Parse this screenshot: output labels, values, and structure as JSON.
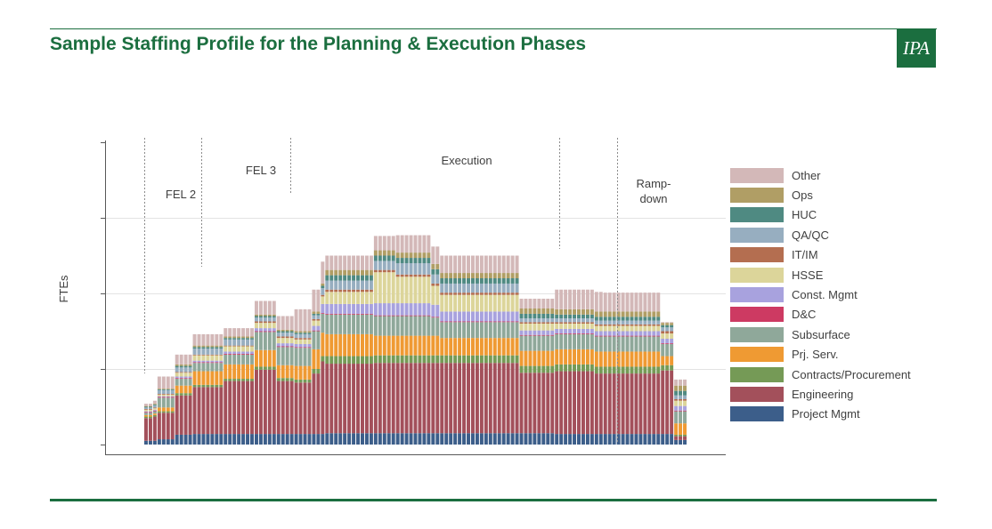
{
  "page": {
    "title": "Sample Staffing Profile for the Planning & Execution Phases",
    "logo_text": "IPA",
    "brand_color": "#1b6e3f"
  },
  "chart_data": {
    "type": "bar",
    "stacked": true,
    "title": "Sample Staffing Profile for the Planning & Execution Phases",
    "xlabel": "",
    "ylabel": "FTEs",
    "ylim": [
      0,
      4
    ],
    "ytick_count": 4,
    "grid": true,
    "legend_position": "right",
    "phases": [
      {
        "label": "FEL 2",
        "start_index": 0,
        "end_index": 12
      },
      {
        "label": "FEL 3",
        "start_index": 13,
        "end_index": 32
      },
      {
        "label": "Execution",
        "start_index": 33,
        "end_index": 93
      },
      {
        "label": "Ramp-\ndown",
        "start_index": 94,
        "end_index": 106
      }
    ],
    "series_order": [
      "Project Mgmt",
      "Engineering",
      "Contracts/Procurement",
      "Prj. Serv.",
      "Subsurface",
      "D&C",
      "Const. Mgmt",
      "HSSE",
      "IT/IM",
      "QA/QC",
      "HUC",
      "Ops",
      "Other"
    ],
    "series_colors": {
      "Other": "#d3b8b8",
      "Ops": "#b09e65",
      "HUC": "#4f8a82",
      "QA/QC": "#97aec0",
      "IT/IM": "#b46e50",
      "HSSE": "#dcd59a",
      "Const. Mgmt": "#a8a2de",
      "D&C": "#cd3a62",
      "Subsurface": "#8fa89a",
      "Prj. Serv.": "#ef9a33",
      "Contracts/Procurement": "#759a56",
      "Engineering": "#a3505b",
      "Project Mgmt": "#3c5e8a"
    },
    "bar_counts": [
      2,
      1,
      4,
      4,
      7,
      7,
      5,
      4,
      4,
      2,
      1,
      11,
      5,
      8,
      2,
      18,
      8,
      9,
      2,
      13,
      3,
      3
    ],
    "segments": [
      {
        "Project Mgmt": 0.05,
        "Engineering": 0.3,
        "Contracts/Procurement": 0.02,
        "Prj. Serv.": 0.02,
        "Subsurface": 0.03,
        "D&C": 0.01,
        "Const. Mgmt": 0.01,
        "HSSE": 0.02,
        "IT/IM": 0.01,
        "QA/QC": 0.02,
        "HUC": 0.01,
        "Ops": 0.01,
        "Other": 0.03
      },
      {
        "Project Mgmt": 0.05,
        "Engineering": 0.32,
        "Contracts/Procurement": 0.02,
        "Prj. Serv.": 0.02,
        "Subsurface": 0.03,
        "D&C": 0.01,
        "Const. Mgmt": 0.01,
        "HSSE": 0.02,
        "IT/IM": 0.01,
        "QA/QC": 0.03,
        "HUC": 0.01,
        "Ops": 0.01,
        "Other": 0.04
      },
      {
        "Project Mgmt": 0.07,
        "Engineering": 0.35,
        "Contracts/Procurement": 0.02,
        "Prj. Serv.": 0.05,
        "Subsurface": 0.13,
        "D&C": 0.01,
        "Const. Mgmt": 0.01,
        "HSSE": 0.02,
        "IT/IM": 0.01,
        "QA/QC": 0.05,
        "HUC": 0.01,
        "Ops": 0.01,
        "Other": 0.16
      },
      {
        "Project Mgmt": 0.13,
        "Engineering": 0.52,
        "Contracts/Procurement": 0.03,
        "Prj. Serv.": 0.1,
        "Subsurface": 0.09,
        "D&C": 0.01,
        "Const. Mgmt": 0.02,
        "HSSE": 0.05,
        "IT/IM": 0.01,
        "QA/QC": 0.06,
        "HUC": 0.02,
        "Ops": 0.02,
        "Other": 0.13
      },
      {
        "Project Mgmt": 0.14,
        "Engineering": 0.62,
        "Contracts/Procurement": 0.03,
        "Prj. Serv.": 0.18,
        "Subsurface": 0.11,
        "D&C": 0.01,
        "Const. Mgmt": 0.02,
        "HSSE": 0.07,
        "IT/IM": 0.01,
        "QA/QC": 0.08,
        "HUC": 0.02,
        "Ops": 0.02,
        "Other": 0.15
      },
      {
        "Project Mgmt": 0.14,
        "Engineering": 0.7,
        "Contracts/Procurement": 0.03,
        "Prj. Serv.": 0.19,
        "Subsurface": 0.13,
        "D&C": 0.01,
        "Const. Mgmt": 0.03,
        "HSSE": 0.07,
        "IT/IM": 0.01,
        "QA/QC": 0.08,
        "HUC": 0.02,
        "Ops": 0.02,
        "Other": 0.11
      },
      {
        "Project Mgmt": 0.14,
        "Engineering": 0.85,
        "Contracts/Procurement": 0.04,
        "Prj. Serv.": 0.22,
        "Subsurface": 0.24,
        "D&C": 0.01,
        "Const. Mgmt": 0.04,
        "HSSE": 0.07,
        "IT/IM": 0.02,
        "QA/QC": 0.05,
        "HUC": 0.02,
        "Ops": 0.02,
        "Other": 0.18
      },
      {
        "Project Mgmt": 0.14,
        "Engineering": 0.7,
        "Contracts/Procurement": 0.04,
        "Prj. Serv.": 0.17,
        "Subsurface": 0.24,
        "D&C": 0.01,
        "Const. Mgmt": 0.04,
        "HSSE": 0.07,
        "IT/IM": 0.02,
        "QA/QC": 0.05,
        "HUC": 0.02,
        "Ops": 0.02,
        "Other": 0.18
      },
      {
        "Project Mgmt": 0.14,
        "Engineering": 0.68,
        "Contracts/Procurement": 0.04,
        "Prj. Serv.": 0.18,
        "Subsurface": 0.24,
        "D&C": 0.01,
        "Const. Mgmt": 0.04,
        "HSSE": 0.06,
        "IT/IM": 0.02,
        "QA/QC": 0.05,
        "HUC": 0.02,
        "Ops": 0.02,
        "Other": 0.29
      },
      {
        "Project Mgmt": 0.14,
        "Engineering": 0.8,
        "Contracts/Procurement": 0.06,
        "Prj. Serv.": 0.26,
        "Subsurface": 0.24,
        "D&C": 0.01,
        "Const. Mgmt": 0.06,
        "HSSE": 0.07,
        "IT/IM": 0.02,
        "QA/QC": 0.05,
        "HUC": 0.02,
        "Ops": 0.03,
        "Other": 0.29
      },
      {
        "Project Mgmt": 0.14,
        "Engineering": 0.96,
        "Contracts/Procurement": 0.07,
        "Prj. Serv.": 0.31,
        "Subsurface": 0.25,
        "D&C": 0.01,
        "Const. Mgmt": 0.12,
        "HSSE": 0.1,
        "IT/IM": 0.02,
        "QA/QC": 0.09,
        "HUC": 0.03,
        "Ops": 0.03,
        "Other": 0.29
      },
      {
        "Project Mgmt": 0.15,
        "Engineering": 0.92,
        "Contracts/Procurement": 0.1,
        "Prj. Serv.": 0.29,
        "Subsurface": 0.26,
        "D&C": 0.01,
        "Const. Mgmt": 0.13,
        "HSSE": 0.16,
        "IT/IM": 0.03,
        "QA/QC": 0.12,
        "HUC": 0.07,
        "Ops": 0.07,
        "Other": 0.19
      },
      {
        "Project Mgmt": 0.15,
        "Engineering": 0.93,
        "Contracts/Procurement": 0.1,
        "Prj. Serv.": 0.26,
        "Subsurface": 0.26,
        "D&C": 0.01,
        "Const. Mgmt": 0.16,
        "HSSE": 0.41,
        "IT/IM": 0.03,
        "QA/QC": 0.12,
        "HUC": 0.07,
        "Ops": 0.07,
        "Other": 0.19
      },
      {
        "Project Mgmt": 0.15,
        "Engineering": 0.93,
        "Contracts/Procurement": 0.1,
        "Prj. Serv.": 0.26,
        "Subsurface": 0.26,
        "D&C": 0.01,
        "Const. Mgmt": 0.16,
        "HSSE": 0.35,
        "IT/IM": 0.03,
        "QA/QC": 0.15,
        "HUC": 0.07,
        "Ops": 0.07,
        "Other": 0.23
      },
      {
        "Project Mgmt": 0.15,
        "Engineering": 0.93,
        "Contracts/Procurement": 0.1,
        "Prj. Serv.": 0.26,
        "Subsurface": 0.24,
        "D&C": 0.01,
        "Const. Mgmt": 0.16,
        "HSSE": 0.25,
        "IT/IM": 0.03,
        "QA/QC": 0.12,
        "HUC": 0.07,
        "Ops": 0.07,
        "Other": 0.23
      },
      {
        "Project Mgmt": 0.15,
        "Engineering": 0.93,
        "Contracts/Procurement": 0.1,
        "Prj. Serv.": 0.23,
        "Subsurface": 0.21,
        "D&C": 0.01,
        "Const. Mgmt": 0.13,
        "HSSE": 0.22,
        "IT/IM": 0.03,
        "QA/QC": 0.12,
        "HUC": 0.07,
        "Ops": 0.07,
        "Other": 0.23
      },
      {
        "Project Mgmt": 0.15,
        "Engineering": 0.8,
        "Contracts/Procurement": 0.09,
        "Prj. Serv.": 0.2,
        "Subsurface": 0.2,
        "D&C": 0.01,
        "Const. Mgmt": 0.06,
        "HSSE": 0.09,
        "IT/IM": 0.02,
        "QA/QC": 0.05,
        "HUC": 0.06,
        "Ops": 0.07,
        "Other": 0.13
      },
      {
        "Project Mgmt": 0.14,
        "Engineering": 0.83,
        "Contracts/Procurement": 0.09,
        "Prj. Serv.": 0.2,
        "Subsurface": 0.2,
        "D&C": 0.01,
        "Const. Mgmt": 0.06,
        "HSSE": 0.07,
        "IT/IM": 0.02,
        "QA/QC": 0.05,
        "HUC": 0.05,
        "Ops": 0.07,
        "Other": 0.26
      },
      {
        "Project Mgmt": 0.14,
        "Engineering": 0.8,
        "Contracts/Procurement": 0.09,
        "Prj. Serv.": 0.2,
        "Subsurface": 0.2,
        "D&C": 0.01,
        "Const. Mgmt": 0.06,
        "HSSE": 0.07,
        "IT/IM": 0.02,
        "QA/QC": 0.05,
        "HUC": 0.05,
        "Ops": 0.07,
        "Other": 0.26
      },
      {
        "Project Mgmt": 0.14,
        "Engineering": 0.8,
        "Contracts/Procurement": 0.09,
        "Prj. Serv.": 0.2,
        "Subsurface": 0.2,
        "D&C": 0.01,
        "Const. Mgmt": 0.06,
        "HSSE": 0.07,
        "IT/IM": 0.02,
        "QA/QC": 0.05,
        "HUC": 0.05,
        "Ops": 0.07,
        "Other": 0.25
      },
      {
        "Project Mgmt": 0.14,
        "Engineering": 0.84,
        "Contracts/Procurement": 0.07,
        "Prj. Serv.": 0.12,
        "Subsurface": 0.16,
        "D&C": 0.01,
        "Const. Mgmt": 0.06,
        "HSSE": 0.07,
        "IT/IM": 0.03,
        "QA/QC": 0.05,
        "HUC": 0.03,
        "Ops": 0.03,
        "Other": 0.01
      },
      {
        "Project Mgmt": 0.06,
        "Engineering": 0.05,
        "Contracts/Procurement": 0.02,
        "Prj. Serv.": 0.15,
        "Subsurface": 0.16,
        "D&C": 0.01,
        "Const. Mgmt": 0.06,
        "HSSE": 0.07,
        "IT/IM": 0.02,
        "QA/QC": 0.05,
        "HUC": 0.06,
        "Ops": 0.07,
        "Other": 0.08
      }
    ]
  },
  "legend": {
    "items": [
      {
        "label": "Other",
        "color": "#d3b8b8"
      },
      {
        "label": "Ops",
        "color": "#b09e65"
      },
      {
        "label": "HUC",
        "color": "#4f8a82"
      },
      {
        "label": "QA/QC",
        "color": "#97aec0"
      },
      {
        "label": "IT/IM",
        "color": "#b46e50"
      },
      {
        "label": "HSSE",
        "color": "#dcd59a"
      },
      {
        "label": "Const. Mgmt",
        "color": "#a8a2de"
      },
      {
        "label": "D&C",
        "color": "#cd3a62"
      },
      {
        "label": "Subsurface",
        "color": "#8fa89a"
      },
      {
        "label": "Prj. Serv.",
        "color": "#ef9a33"
      },
      {
        "label": "Contracts/Procurement",
        "color": "#759a56"
      },
      {
        "label": "Engineering",
        "color": "#a3505b"
      },
      {
        "label": "Project Mgmt",
        "color": "#3c5e8a"
      }
    ]
  }
}
